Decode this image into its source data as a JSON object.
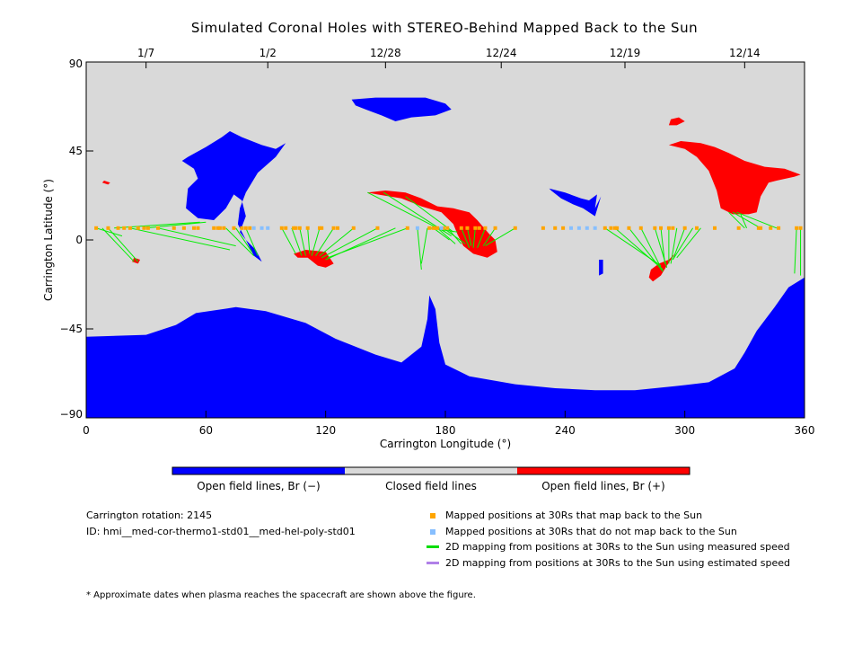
{
  "chart_data": {
    "type": "scatter",
    "title": "Simulated Coronal Holes with STEREO-Behind Mapped Back to the Sun",
    "xlabel": "Carrington Longitude (°)",
    "ylabel": "Carrington Latitude (°)",
    "xlim": [
      0,
      360
    ],
    "ylim": [
      -90,
      90
    ],
    "xticks": [
      "0",
      "60",
      "120",
      "180",
      "240",
      "300",
      "360"
    ],
    "yticks": [
      "90",
      "45",
      "0",
      "-45",
      "-90"
    ],
    "top_axis_dates": [
      {
        "label": "1/7",
        "lon": 30
      },
      {
        "label": "1/2",
        "lon": 91
      },
      {
        "label": "12/28",
        "lon": 150
      },
      {
        "label": "12/24",
        "lon": 208
      },
      {
        "label": "12/19",
        "lon": 270
      },
      {
        "label": "12/14",
        "lon": 330
      }
    ],
    "colorbar": [
      {
        "label": "Open field lines, Br (−)",
        "color": "#0000ff"
      },
      {
        "label": "Closed field lines",
        "color": "#d9d9d9"
      },
      {
        "label": "Open field lines, Br (+)",
        "color": "#ff0000"
      }
    ],
    "regions_negative": [
      [
        [
          0,
          -49
        ],
        [
          30,
          -48
        ],
        [
          45,
          -43
        ],
        [
          55,
          -37
        ],
        [
          75,
          -34
        ],
        [
          90,
          -36
        ],
        [
          110,
          -42
        ],
        [
          125,
          -50
        ],
        [
          145,
          -58
        ],
        [
          158,
          -62
        ],
        [
          168,
          -54
        ],
        [
          171,
          -40
        ],
        [
          172,
          -28
        ],
        [
          175,
          -35
        ],
        [
          177,
          -52
        ],
        [
          180,
          -63
        ],
        [
          192,
          -69
        ],
        [
          215,
          -73
        ],
        [
          235,
          -75
        ],
        [
          255,
          -76
        ],
        [
          275,
          -76
        ],
        [
          295,
          -74
        ],
        [
          312,
          -72
        ],
        [
          325,
          -65
        ],
        [
          330,
          -57
        ],
        [
          336,
          -46
        ],
        [
          345,
          -34
        ],
        [
          352,
          -24
        ],
        [
          360,
          -19
        ],
        [
          360,
          -90
        ],
        [
          0,
          -90
        ]
      ],
      [
        [
          51,
          42
        ],
        [
          60,
          47
        ],
        [
          68,
          52
        ],
        [
          72,
          55
        ],
        [
          78,
          52
        ],
        [
          88,
          48
        ],
        [
          95,
          46
        ],
        [
          100,
          49
        ],
        [
          95,
          42
        ],
        [
          86,
          34
        ],
        [
          80,
          24
        ],
        [
          77,
          16
        ],
        [
          76,
          8
        ],
        [
          80,
          0
        ],
        [
          84,
          -8
        ],
        [
          88,
          -11
        ],
        [
          85,
          -5
        ],
        [
          80,
          0
        ],
        [
          77,
          4
        ],
        [
          80,
          12
        ],
        [
          78,
          20
        ],
        [
          74,
          23
        ],
        [
          70,
          16
        ],
        [
          64,
          10
        ],
        [
          56,
          11
        ],
        [
          50,
          16
        ],
        [
          51,
          26
        ],
        [
          56,
          31
        ],
        [
          54,
          36
        ],
        [
          48,
          40
        ]
      ],
      [
        [
          133,
          71
        ],
        [
          145,
          72
        ],
        [
          158,
          72
        ],
        [
          170,
          72
        ],
        [
          180,
          69
        ],
        [
          183,
          66
        ],
        [
          175,
          63
        ],
        [
          163,
          62
        ],
        [
          155,
          60
        ],
        [
          148,
          63
        ],
        [
          140,
          66
        ],
        [
          135,
          68
        ]
      ],
      [
        [
          232,
          26
        ],
        [
          240,
          24
        ],
        [
          248,
          21
        ],
        [
          252,
          20
        ],
        [
          256,
          23
        ],
        [
          255,
          16
        ],
        [
          258,
          22
        ],
        [
          255,
          12
        ],
        [
          249,
          16
        ],
        [
          244,
          18
        ],
        [
          238,
          21
        ],
        [
          233,
          25
        ]
      ],
      [
        [
          257,
          -10
        ],
        [
          259,
          -10
        ],
        [
          259,
          -17
        ],
        [
          257,
          -18
        ]
      ]
    ],
    "regions_positive": [
      [
        [
          293,
          61
        ],
        [
          297,
          62
        ],
        [
          300,
          60
        ],
        [
          296,
          58
        ],
        [
          292,
          58
        ]
      ],
      [
        [
          292,
          48
        ],
        [
          298,
          50
        ],
        [
          308,
          49
        ],
        [
          315,
          47
        ],
        [
          322,
          44
        ],
        [
          330,
          40
        ],
        [
          340,
          37
        ],
        [
          350,
          36
        ],
        [
          358,
          33
        ],
        [
          355,
          32
        ],
        [
          346,
          30
        ],
        [
          342,
          29
        ],
        [
          338,
          22
        ],
        [
          336,
          14
        ],
        [
          332,
          13
        ],
        [
          324,
          13
        ],
        [
          318,
          16
        ],
        [
          316,
          25
        ],
        [
          312,
          35
        ],
        [
          306,
          42
        ],
        [
          300,
          46
        ]
      ],
      [
        [
          141,
          24
        ],
        [
          150,
          25
        ],
        [
          160,
          24
        ],
        [
          168,
          21
        ],
        [
          176,
          17
        ],
        [
          184,
          16
        ],
        [
          192,
          14
        ],
        [
          196,
          10
        ],
        [
          202,
          3
        ],
        [
          205,
          0
        ],
        [
          206,
          -6
        ],
        [
          201,
          -9
        ],
        [
          194,
          -7
        ],
        [
          189,
          -3
        ],
        [
          186,
          3
        ],
        [
          184,
          8
        ],
        [
          178,
          14
        ],
        [
          168,
          17
        ],
        [
          158,
          21
        ],
        [
          146,
          23
        ]
      ],
      [
        [
          104,
          -7
        ],
        [
          110,
          -5
        ],
        [
          120,
          -6
        ],
        [
          122,
          -9
        ],
        [
          124,
          -12
        ],
        [
          120,
          -14
        ],
        [
          116,
          -13
        ],
        [
          111,
          -9
        ],
        [
          106,
          -9
        ]
      ],
      [
        [
          283,
          -15
        ],
        [
          287,
          -12
        ],
        [
          292,
          -10
        ],
        [
          295,
          -7
        ],
        [
          291,
          -13
        ],
        [
          288,
          -18
        ],
        [
          284,
          -21
        ],
        [
          282,
          -19
        ]
      ],
      [
        [
          24,
          -9
        ],
        [
          27,
          -10
        ],
        [
          26,
          -12
        ],
        [
          23,
          -11
        ]
      ],
      [
        [
          9,
          30
        ],
        [
          12,
          29
        ],
        [
          11,
          28
        ],
        [
          8,
          29
        ]
      ]
    ],
    "mapped_orange": [
      [
        5,
        6
      ],
      [
        11,
        6
      ],
      [
        16,
        6
      ],
      [
        19,
        6
      ],
      [
        22,
        6
      ],
      [
        26,
        6
      ],
      [
        29,
        6
      ],
      [
        31,
        6
      ],
      [
        36,
        6
      ],
      [
        44,
        6
      ],
      [
        49,
        6
      ],
      [
        54,
        6
      ],
      [
        56,
        6
      ],
      [
        64,
        6
      ],
      [
        66,
        6
      ],
      [
        67,
        6
      ],
      [
        69,
        6
      ],
      [
        74,
        6
      ],
      [
        78,
        6
      ],
      [
        80,
        6
      ],
      [
        82,
        6
      ],
      [
        98,
        6
      ],
      [
        100,
        6
      ],
      [
        104,
        6
      ],
      [
        105,
        6
      ],
      [
        107,
        6
      ],
      [
        111,
        6
      ],
      [
        117,
        6
      ],
      [
        118,
        6
      ],
      [
        124,
        6
      ],
      [
        126,
        6
      ],
      [
        134,
        6
      ],
      [
        146,
        6
      ],
      [
        161,
        6
      ],
      [
        172,
        6
      ],
      [
        174,
        6
      ],
      [
        175,
        6
      ],
      [
        176,
        6
      ],
      [
        179,
        6
      ],
      [
        181,
        6
      ],
      [
        188,
        6
      ],
      [
        191,
        6
      ],
      [
        195,
        6
      ],
      [
        197,
        6
      ],
      [
        200,
        6
      ],
      [
        205,
        6
      ],
      [
        215,
        6
      ],
      [
        229,
        6
      ],
      [
        235,
        6
      ],
      [
        239,
        6
      ],
      [
        260,
        6
      ],
      [
        263,
        6
      ],
      [
        265,
        6
      ],
      [
        266,
        6
      ],
      [
        272,
        6
      ],
      [
        278,
        6
      ],
      [
        285,
        6
      ],
      [
        288,
        6
      ],
      [
        292,
        6
      ],
      [
        294,
        6
      ],
      [
        300,
        6
      ],
      [
        306,
        6
      ],
      [
        315,
        6
      ],
      [
        327,
        6
      ],
      [
        337,
        6
      ],
      [
        338,
        6
      ],
      [
        343,
        6
      ],
      [
        347,
        6
      ],
      [
        356,
        6
      ],
      [
        358,
        6
      ]
    ],
    "mapped_blue": [
      [
        84,
        6
      ],
      [
        88,
        6
      ],
      [
        91,
        6
      ],
      [
        166,
        6
      ],
      [
        178,
        6
      ],
      [
        243,
        6
      ],
      [
        247,
        6
      ],
      [
        251,
        6
      ],
      [
        255,
        6
      ]
    ],
    "mapping_lines": [
      [
        [
          5,
          6
        ],
        [
          18,
          2
        ]
      ],
      [
        [
          8,
          6
        ],
        [
          24,
          -11
        ]
      ],
      [
        [
          11,
          6
        ],
        [
          26,
          -11
        ]
      ],
      [
        [
          14,
          6
        ],
        [
          57,
          9
        ]
      ],
      [
        [
          22,
          6
        ],
        [
          72,
          -5
        ]
      ],
      [
        [
          30,
          6
        ],
        [
          60,
          9
        ]
      ],
      [
        [
          36,
          6
        ],
        [
          75,
          -3
        ]
      ],
      [
        [
          70,
          6
        ],
        [
          84,
          -8
        ]
      ],
      [
        [
          75,
          6
        ],
        [
          83,
          -6
        ]
      ],
      [
        [
          80,
          6
        ],
        [
          86,
          -8
        ]
      ],
      [
        [
          98,
          6
        ],
        [
          105,
          -7
        ]
      ],
      [
        [
          103,
          6
        ],
        [
          108,
          -8
        ]
      ],
      [
        [
          107,
          6
        ],
        [
          110,
          -8
        ]
      ],
      [
        [
          111,
          6
        ],
        [
          112,
          -7
        ]
      ],
      [
        [
          117,
          6
        ],
        [
          113,
          -8
        ]
      ],
      [
        [
          124,
          6
        ],
        [
          115,
          -8
        ]
      ],
      [
        [
          134,
          6
        ],
        [
          117,
          -8
        ]
      ],
      [
        [
          146,
          6
        ],
        [
          118,
          -9
        ]
      ],
      [
        [
          155,
          6
        ],
        [
          120,
          -10
        ]
      ],
      [
        [
          161,
          6
        ],
        [
          121,
          -9
        ]
      ],
      [
        [
          141,
          24
        ],
        [
          180,
          4
        ]
      ],
      [
        [
          149,
          24
        ],
        [
          183,
          2
        ]
      ],
      [
        [
          160,
          22
        ],
        [
          184,
          4
        ]
      ],
      [
        [
          172,
          6
        ],
        [
          186,
          4
        ]
      ],
      [
        [
          174,
          6
        ],
        [
          182,
          0
        ]
      ],
      [
        [
          176,
          6
        ],
        [
          185,
          -2
        ]
      ],
      [
        [
          179,
          6
        ],
        [
          190,
          -2
        ]
      ],
      [
        [
          181,
          6
        ],
        [
          188,
          -2
        ]
      ],
      [
        [
          188,
          6
        ],
        [
          192,
          -4
        ]
      ],
      [
        [
          191,
          6
        ],
        [
          193,
          -3
        ]
      ],
      [
        [
          195,
          6
        ],
        [
          194,
          -4
        ]
      ],
      [
        [
          200,
          6
        ],
        [
          196,
          -4
        ]
      ],
      [
        [
          205,
          6
        ],
        [
          199,
          -3
        ]
      ],
      [
        [
          215,
          6
        ],
        [
          200,
          -3
        ]
      ],
      [
        [
          166,
          6
        ],
        [
          168,
          -15
        ]
      ],
      [
        [
          171,
          6
        ],
        [
          168,
          -12
        ]
      ],
      [
        [
          260,
          6
        ],
        [
          288,
          -13
        ]
      ],
      [
        [
          265,
          6
        ],
        [
          289,
          -15
        ]
      ],
      [
        [
          272,
          6
        ],
        [
          289,
          -16
        ]
      ],
      [
        [
          278,
          6
        ],
        [
          289,
          -16
        ]
      ],
      [
        [
          285,
          6
        ],
        [
          291,
          -14
        ]
      ],
      [
        [
          288,
          6
        ],
        [
          290,
          -12
        ]
      ],
      [
        [
          292,
          6
        ],
        [
          292,
          -12
        ]
      ],
      [
        [
          296,
          6
        ],
        [
          293,
          -12
        ]
      ],
      [
        [
          300,
          6
        ],
        [
          294,
          -10
        ]
      ],
      [
        [
          304,
          6
        ],
        [
          294,
          -10
        ]
      ],
      [
        [
          308,
          6
        ],
        [
          296,
          -9
        ]
      ],
      [
        [
          322,
          14
        ],
        [
          330,
          6
        ]
      ],
      [
        [
          324,
          14
        ],
        [
          338,
          6
        ]
      ],
      [
        [
          326,
          14
        ],
        [
          346,
          6
        ]
      ],
      [
        [
          328,
          13
        ],
        [
          331,
          6
        ]
      ],
      [
        [
          356,
          6
        ],
        [
          355,
          -17
        ]
      ],
      [
        [
          358,
          6
        ],
        [
          358,
          -18
        ]
      ]
    ],
    "legend": [
      {
        "label": "Mapped positions at 30Rs that map back to the Sun",
        "kind": "square",
        "color": "#ffa500"
      },
      {
        "label": "Mapped positions at 30Rs that do not map back to the Sun",
        "kind": "square",
        "color": "#87bfff"
      },
      {
        "label": "2D mapping from positions at 30Rs to the Sun using measured speed",
        "kind": "line",
        "color": "#00dd00"
      },
      {
        "label": "2D mapping from positions at 30Rs to the Sun using estimated speed",
        "kind": "line",
        "color": "#b080e8"
      }
    ],
    "colors": {
      "background": "#d9d9d9",
      "negative": "#0000ff",
      "positive": "#ff0000",
      "line": "#00ee00"
    }
  },
  "info": {
    "rotation": "Carrington rotation: 2145",
    "model_id": "ID: hmi__med-cor-thermo1-std01__med-hel-poly-std01"
  },
  "footnote": "* Approximate dates when plasma reaches the spacecraft are shown above the figure."
}
